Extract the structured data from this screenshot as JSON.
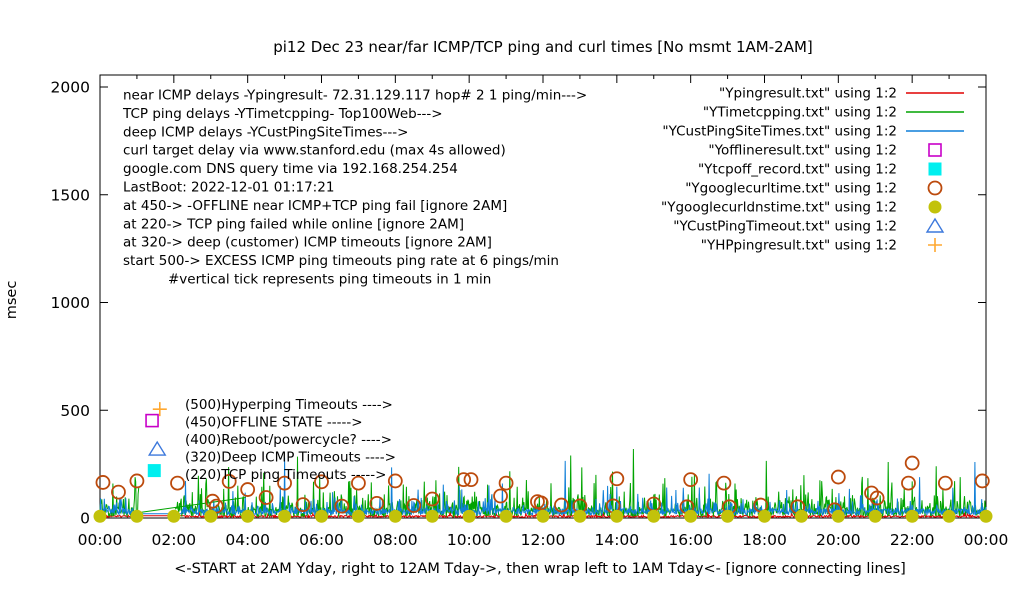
{
  "chart_data": {
    "type": "line+scatter",
    "title": "pi12 Dec 23  near/far ICMP/TCP ping and curl times [No msmt 1AM-2AM]",
    "ylabel": "msec",
    "xlabel": "<-START at 2AM Yday, right to 12AM Tday->, then wrap left to 1AM Tday<- [ignore connecting lines]",
    "ylim": [
      0,
      2055
    ],
    "xlim_hours": [
      0,
      24
    ],
    "y_ticks": [
      0,
      500,
      1000,
      1500,
      2000
    ],
    "x_tick_labels": [
      "00:00",
      "02:00",
      "04:00",
      "06:00",
      "08:00",
      "10:00",
      "12:00",
      "14:00",
      "16:00",
      "18:00",
      "20:00",
      "22:00",
      "00:00"
    ],
    "x_minor_tick_every_hours": 1,
    "grid": false,
    "legend_position": "top-right",
    "legend": [
      {
        "label": "\"Ypingresult.txt\" using 1:2",
        "style": "line",
        "color": "#e00000"
      },
      {
        "label": "\"YTimetcpping.txt\" using 1:2",
        "style": "line",
        "color": "#00a400"
      },
      {
        "label": "\"YCustPingSiteTimes.txt\" using 1:2",
        "style": "line",
        "color": "#0f7fd8"
      },
      {
        "label": "\"Yofflineresult.txt\" using 1:2",
        "style": "open-square",
        "color": "#c800c8"
      },
      {
        "label": "\"Ytcpoff_record.txt\" using 1:2",
        "style": "filled-square",
        "color": "#00efef"
      },
      {
        "label": "\"Ygooglecurltime.txt\" using 1:2",
        "style": "open-circle",
        "color": "#bc4a0c"
      },
      {
        "label": "\"Ygooglecurldnstime.txt\" using 1:2",
        "style": "filled-circle",
        "color": "#c2c20a"
      },
      {
        "label": "\"YCustPingTimeout.txt\" using 1:2",
        "style": "open-triangle",
        "color": "#3c78dc"
      },
      {
        "label": "\"YHPpingresult.txt\" using 1:2",
        "style": "plus",
        "color": "#ffa830"
      }
    ],
    "annotations": [
      "near ICMP delays -Ypingresult- 72.31.129.117 hop# 2 1 ping/min--->",
      "TCP ping delays -YTimetcpping- Top100Web--->",
      "deep ICMP delays -YCustPingSiteTimes--->",
      "curl target delay via www.stanford.edu (max 4s allowed)",
      "google.com DNS query time via 192.168.254.254",
      "LastBoot: 2022-12-01 01:17:21",
      "at 450-> -OFFLINE near ICMP+TCP ping fail [ignore 2AM]",
      "at 220-> TCP ping failed while online [ignore 2AM]",
      "at 320-> deep (customer) ICMP timeouts [ignore 2AM]",
      "start 500-> EXCESS ICMP ping timeouts ping rate at 6 pings/min",
      "#vertical tick represents ping timeouts in 1 min"
    ],
    "inplot_labels": [
      {
        "text": "(500)Hyperping Timeouts ---->",
        "marker": "plus",
        "color": "#ffa830",
        "marker_value": 505,
        "marker_hour": 1.62
      },
      {
        "text": "(450)OFFLINE STATE ----->",
        "marker": "open-square",
        "color": "#c800c8",
        "marker_value": 452,
        "marker_hour": 1.41
      },
      {
        "text": "(400)Reboot/powercycle? ---->",
        "marker": "none",
        "color": "#000000",
        "marker_value": 400,
        "marker_hour": 1.5
      },
      {
        "text": "(320)Deep ICMP Timeouts ---->",
        "marker": "open-triangle",
        "color": "#3c78dc",
        "marker_value": 320,
        "marker_hour": 1.55
      },
      {
        "text": "(220)TCP ping Timeouts ----->",
        "marker": "filled-square",
        "color": "#00efef",
        "marker_value": 220,
        "marker_hour": 1.47
      }
    ],
    "series": [
      {
        "name": "Ypingresult (near ICMP delays)",
        "color": "#e00000",
        "kind": "noisy-line",
        "base": 3,
        "noise": 9,
        "p1": 0.05,
        "amp1": 20,
        "p2": 0.005,
        "amp2": 45,
        "flat": [
          1.0,
          2.3,
          10
        ],
        "tall_spikes": []
      },
      {
        "name": "YTimetcpping (TCP ping delays)",
        "color": "#00a400",
        "kind": "noisy-line",
        "base": 6,
        "noise": 45,
        "p1": 0.3,
        "amp1": 70,
        "p2": 0.05,
        "amp2": 160,
        "gap": [
          1.06,
          2.02
        ],
        "tall_spikes": [
          [
            0.35,
            160
          ],
          [
            2.5,
            120
          ],
          [
            3.35,
            135
          ],
          [
            4.6,
            150
          ],
          [
            5.35,
            285
          ],
          [
            5.95,
            185
          ],
          [
            6.8,
            140
          ],
          [
            7.35,
            165
          ],
          [
            8.3,
            145
          ],
          [
            9.1,
            175
          ],
          [
            10.5,
            155
          ],
          [
            11.3,
            145
          ],
          [
            12.75,
            290
          ],
          [
            13.05,
            235
          ],
          [
            14.45,
            320
          ],
          [
            15.3,
            185
          ],
          [
            16.1,
            200
          ],
          [
            17.2,
            160
          ],
          [
            18.05,
            265
          ],
          [
            19.5,
            175
          ],
          [
            20.8,
            185
          ],
          [
            21.35,
            260
          ],
          [
            22.0,
            170
          ],
          [
            22.65,
            240
          ],
          [
            23.3,
            190
          ]
        ]
      },
      {
        "name": "YCustPingSiteTimes (deep ICMP delays)",
        "color": "#0f7fd8",
        "kind": "noisy-line",
        "base": 14,
        "noise": 30,
        "p1": 0.18,
        "amp1": 55,
        "p2": 0.02,
        "amp2": 130,
        "flat": [
          0.9,
          2.2,
          20
        ],
        "tall_spikes": [
          [
            3.6,
            125
          ],
          [
            5.0,
            280
          ],
          [
            6.3,
            120
          ],
          [
            7.9,
            235
          ],
          [
            9.3,
            155
          ],
          [
            10.9,
            160
          ],
          [
            12.6,
            265
          ],
          [
            14.0,
            145
          ],
          [
            15.6,
            130
          ],
          [
            16.5,
            205
          ],
          [
            18.6,
            130
          ],
          [
            20.3,
            135
          ],
          [
            22.2,
            190
          ],
          [
            23.1,
            140
          ],
          [
            23.7,
            260
          ]
        ]
      }
    ],
    "wrap_connector": {
      "color": "#00a400",
      "from": [
        1.05,
        25
      ],
      "to": [
        3.95,
        95
      ]
    },
    "scatter": [
      {
        "name": "Ygooglecurltime (curl target delay)",
        "color": "#bc4a0c",
        "marker": "open-circle",
        "points": [
          [
            0.08,
            165
          ],
          [
            0.5,
            120
          ],
          [
            1.0,
            172
          ],
          [
            2.1,
            162
          ],
          [
            3.05,
            78
          ],
          [
            3.15,
            55
          ],
          [
            3.5,
            170
          ],
          [
            4.0,
            132
          ],
          [
            4.5,
            95
          ],
          [
            5.0,
            162
          ],
          [
            5.5,
            62
          ],
          [
            6.0,
            168
          ],
          [
            6.55,
            55
          ],
          [
            7.0,
            162
          ],
          [
            7.5,
            68
          ],
          [
            8.0,
            172
          ],
          [
            8.5,
            58
          ],
          [
            9.0,
            88
          ],
          [
            9.85,
            178
          ],
          [
            10.05,
            178
          ],
          [
            10.85,
            102
          ],
          [
            11.0,
            162
          ],
          [
            11.85,
            76
          ],
          [
            11.95,
            70
          ],
          [
            12.5,
            60
          ],
          [
            13.0,
            56
          ],
          [
            13.9,
            56
          ],
          [
            14.0,
            182
          ],
          [
            15.0,
            65
          ],
          [
            15.9,
            52
          ],
          [
            16.0,
            178
          ],
          [
            16.9,
            162
          ],
          [
            17.05,
            52
          ],
          [
            17.9,
            60
          ],
          [
            18.9,
            52
          ],
          [
            19.9,
            38
          ],
          [
            20.0,
            190
          ],
          [
            20.9,
            116
          ],
          [
            21.05,
            93
          ],
          [
            21.9,
            162
          ],
          [
            22.0,
            255
          ],
          [
            22.9,
            162
          ],
          [
            23.9,
            172
          ]
        ]
      },
      {
        "name": "Ygooglecurldnstime (DNS query time)",
        "color": "#c2c20a",
        "marker": "filled-circle",
        "points": [
          [
            0,
            8
          ],
          [
            1,
            8
          ],
          [
            2,
            8
          ],
          [
            3,
            8
          ],
          [
            4,
            8
          ],
          [
            5,
            8
          ],
          [
            6,
            8
          ],
          [
            7,
            8
          ],
          [
            8,
            8
          ],
          [
            9,
            8
          ],
          [
            10,
            8
          ],
          [
            11,
            8
          ],
          [
            12,
            8
          ],
          [
            13,
            8
          ],
          [
            14,
            8
          ],
          [
            15,
            8
          ],
          [
            16,
            8
          ],
          [
            17,
            8
          ],
          [
            18,
            8
          ],
          [
            19,
            8
          ],
          [
            20,
            8
          ],
          [
            21,
            8
          ],
          [
            22,
            8
          ],
          [
            23,
            8
          ],
          [
            24,
            8
          ]
        ]
      }
    ]
  }
}
